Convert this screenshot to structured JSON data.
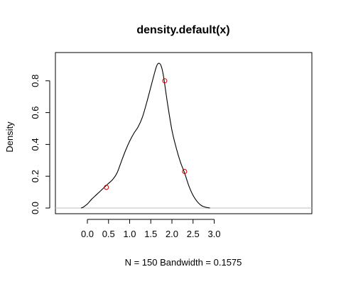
{
  "chart_data": {
    "type": "line",
    "title": "density.default(x)",
    "xlabel": "N = 150   Bandwidth = 0.1575",
    "ylabel": "Density",
    "xlim": [
      -0.2,
      3.0
    ],
    "ylim": [
      0,
      0.93
    ],
    "x_ticks": [
      0.0,
      0.5,
      1.0,
      1.5,
      2.0,
      2.5,
      3.0
    ],
    "x_tick_labels": [
      "0.0",
      "0.5",
      "1.0",
      "1.5",
      "2.0",
      "2.5",
      "3.0"
    ],
    "y_ticks": [
      0.0,
      0.2,
      0.4,
      0.6,
      0.8
    ],
    "y_tick_labels": [
      "0.0",
      "0.2",
      "0.4",
      "0.6",
      "0.8"
    ],
    "grid": false,
    "horizontal_reference_line": 0,
    "series": [
      {
        "x": [
          -0.15,
          -0.1,
          -0.05,
          0.0,
          0.05,
          0.1,
          0.2,
          0.3,
          0.4,
          0.5,
          0.6,
          0.7,
          0.8,
          0.9,
          1.0,
          1.1,
          1.2,
          1.3,
          1.4,
          1.5,
          1.6,
          1.65,
          1.7,
          1.75,
          1.8,
          1.9,
          2.0,
          2.1,
          2.2,
          2.3,
          2.4,
          2.5,
          2.6,
          2.7,
          2.8,
          2.9
        ],
        "y": [
          0.0,
          0.005,
          0.015,
          0.025,
          0.04,
          0.055,
          0.08,
          0.105,
          0.13,
          0.155,
          0.18,
          0.22,
          0.29,
          0.36,
          0.42,
          0.47,
          0.51,
          0.57,
          0.66,
          0.76,
          0.86,
          0.9,
          0.91,
          0.89,
          0.83,
          0.65,
          0.49,
          0.38,
          0.29,
          0.22,
          0.14,
          0.08,
          0.04,
          0.015,
          0.005,
          0.0
        ]
      }
    ],
    "points": [
      {
        "x": 0.45,
        "y": 0.13,
        "color": "#cc0000"
      },
      {
        "x": 1.83,
        "y": 0.8,
        "color": "#cc0000"
      },
      {
        "x": 2.3,
        "y": 0.23,
        "color": "#cc0000"
      }
    ],
    "colors": {
      "line": "#000000",
      "reference": "#bdbdbd",
      "points": "#cc0000"
    }
  }
}
